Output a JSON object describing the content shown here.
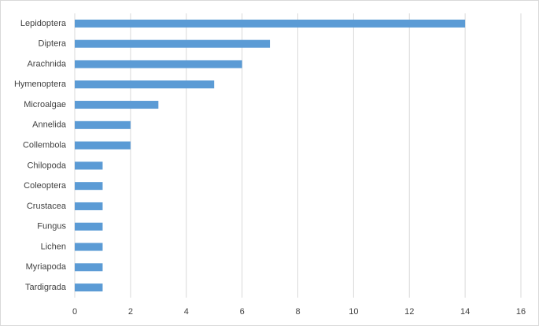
{
  "chart_data": {
    "type": "bar",
    "orientation": "horizontal",
    "categories": [
      "Lepidoptera",
      "Diptera",
      "Arachnida",
      "Hymenoptera",
      "Microalgae",
      "Annelida",
      "Collembola",
      "Chilopoda",
      "Coleoptera",
      "Crustacea",
      "Fungus",
      "Lichen",
      "Myriapoda",
      "Tardigrada"
    ],
    "values": [
      14,
      7,
      6,
      5,
      3,
      2,
      2,
      1,
      1,
      1,
      1,
      1,
      1,
      1
    ],
    "color": "#5b9bd5",
    "xlim": [
      0,
      16
    ],
    "xticks": [
      0,
      2,
      4,
      6,
      8,
      10,
      12,
      14,
      16
    ],
    "grid": true
  }
}
